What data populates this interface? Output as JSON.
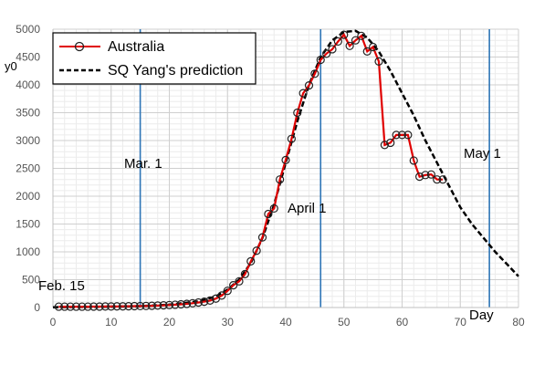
{
  "chart_data": {
    "type": "line",
    "title": "",
    "xlabel": "Day",
    "ylabel": "y0",
    "xlim": [
      0,
      80
    ],
    "ylim": [
      0,
      5000
    ],
    "x_ticks": [
      0,
      10,
      20,
      30,
      40,
      50,
      60,
      70,
      80
    ],
    "y_ticks": [
      0,
      500,
      1000,
      1500,
      2000,
      2500,
      3000,
      3500,
      4000,
      4500,
      5000
    ],
    "grid": true,
    "legend_position": "top-left",
    "series": [
      {
        "name": "Australia",
        "color": "#e00000",
        "marker": "open-circle",
        "x": [
          1,
          2,
          3,
          4,
          5,
          6,
          7,
          8,
          9,
          10,
          11,
          12,
          13,
          14,
          15,
          16,
          17,
          18,
          19,
          20,
          21,
          22,
          23,
          24,
          25,
          26,
          27,
          28,
          29,
          30,
          31,
          32,
          33,
          34,
          35,
          36,
          37,
          38,
          39,
          40,
          41,
          42,
          43,
          44,
          45,
          46,
          47,
          48,
          49,
          50,
          51,
          52,
          53,
          54,
          55,
          56,
          57,
          58,
          59,
          60,
          61,
          62,
          63,
          64,
          65,
          66,
          67
        ],
        "values": [
          15,
          15,
          15,
          15,
          15,
          15,
          16,
          17,
          18,
          19,
          20,
          21,
          22,
          24,
          26,
          28,
          31,
          35,
          39,
          44,
          50,
          57,
          66,
          77,
          90,
          105,
          125,
          160,
          215,
          300,
          400,
          470,
          600,
          830,
          1020,
          1260,
          1680,
          1780,
          2300,
          2650,
          3030,
          3500,
          3850,
          3990,
          4200,
          4450,
          4560,
          4640,
          4780,
          4900,
          4700,
          4800,
          4880,
          4600,
          4680,
          4420,
          2920,
          2960,
          3100,
          3100,
          3100,
          2640,
          2350,
          2380,
          2390,
          2300,
          2300
        ]
      },
      {
        "name": "SQ Yang's prediction",
        "color": "#000000",
        "style": "dashed",
        "x": [
          0,
          5,
          10,
          15,
          20,
          25,
          28,
          30,
          32,
          34,
          36,
          38,
          40,
          42,
          44,
          46,
          48,
          50,
          52,
          54,
          56,
          58,
          60,
          62,
          64,
          66,
          68,
          70,
          72,
          74,
          76,
          78,
          80
        ],
        "values": [
          5,
          10,
          15,
          25,
          50,
          110,
          200,
          320,
          500,
          800,
          1250,
          1850,
          2600,
          3350,
          4000,
          4500,
          4800,
          4950,
          4970,
          4850,
          4600,
          4250,
          3850,
          3450,
          3000,
          2600,
          2200,
          1800,
          1500,
          1250,
          1000,
          780,
          560
        ]
      }
    ],
    "annotations": [
      {
        "text": "Feb. 15",
        "x": 1
      },
      {
        "text": "Mar. 1",
        "x": 15
      },
      {
        "text": "April 1",
        "x": 46
      },
      {
        "text": "May 1",
        "x": 75
      }
    ],
    "reference_lines": {
      "x": [
        15,
        46,
        75
      ],
      "color": "#2e75b6"
    }
  }
}
